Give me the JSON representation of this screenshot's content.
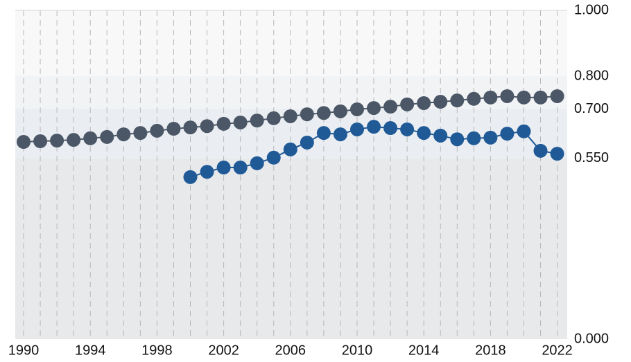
{
  "chart_data": {
    "type": "line",
    "x": [
      1990,
      1991,
      1992,
      1993,
      1994,
      1995,
      1996,
      1997,
      1998,
      1999,
      2000,
      2001,
      2002,
      2003,
      2004,
      2005,
      2006,
      2007,
      2008,
      2009,
      2010,
      2011,
      2012,
      2013,
      2014,
      2015,
      2016,
      2017,
      2018,
      2019,
      2020,
      2021,
      2022
    ],
    "series": [
      {
        "color": "#4b5766",
        "values": [
          0.6,
          0.602,
          0.604,
          0.606,
          0.611,
          0.615,
          0.623,
          0.627,
          0.634,
          0.64,
          0.644,
          0.648,
          0.655,
          0.659,
          0.665,
          0.672,
          0.678,
          0.684,
          0.688,
          0.693,
          0.699,
          0.703,
          0.707,
          0.714,
          0.718,
          0.722,
          0.726,
          0.731,
          0.735,
          0.739,
          0.735,
          0.735,
          0.739
        ]
      },
      {
        "color": "#1f5a97",
        "values": [
          null,
          null,
          null,
          null,
          null,
          null,
          null,
          null,
          null,
          null,
          0.493,
          0.509,
          0.522,
          0.522,
          0.535,
          0.552,
          0.577,
          0.598,
          0.627,
          0.623,
          0.638,
          0.646,
          0.642,
          0.638,
          0.627,
          0.619,
          0.608,
          0.611,
          0.613,
          0.625,
          0.632,
          0.573,
          0.564
        ]
      }
    ],
    "xlim": [
      1989.5,
      2022.6
    ],
    "xticks": [
      1990,
      1994,
      1998,
      2002,
      2006,
      2010,
      2014,
      2018,
      2022
    ],
    "ylim": [
      0,
      1
    ],
    "yticks": [
      {
        "value": 0,
        "label": "0.000"
      },
      {
        "value": 0.55,
        "label": "0.550"
      },
      {
        "value": 0.7,
        "label": "0.700"
      },
      {
        "value": 0.8,
        "label": "0.800"
      },
      {
        "value": 1,
        "label": "1.000"
      }
    ],
    "band_colors": [
      "#e8e9eb",
      "#eaeef2",
      "#f2f3f5",
      "#f8f8f9"
    ],
    "grid": true
  }
}
